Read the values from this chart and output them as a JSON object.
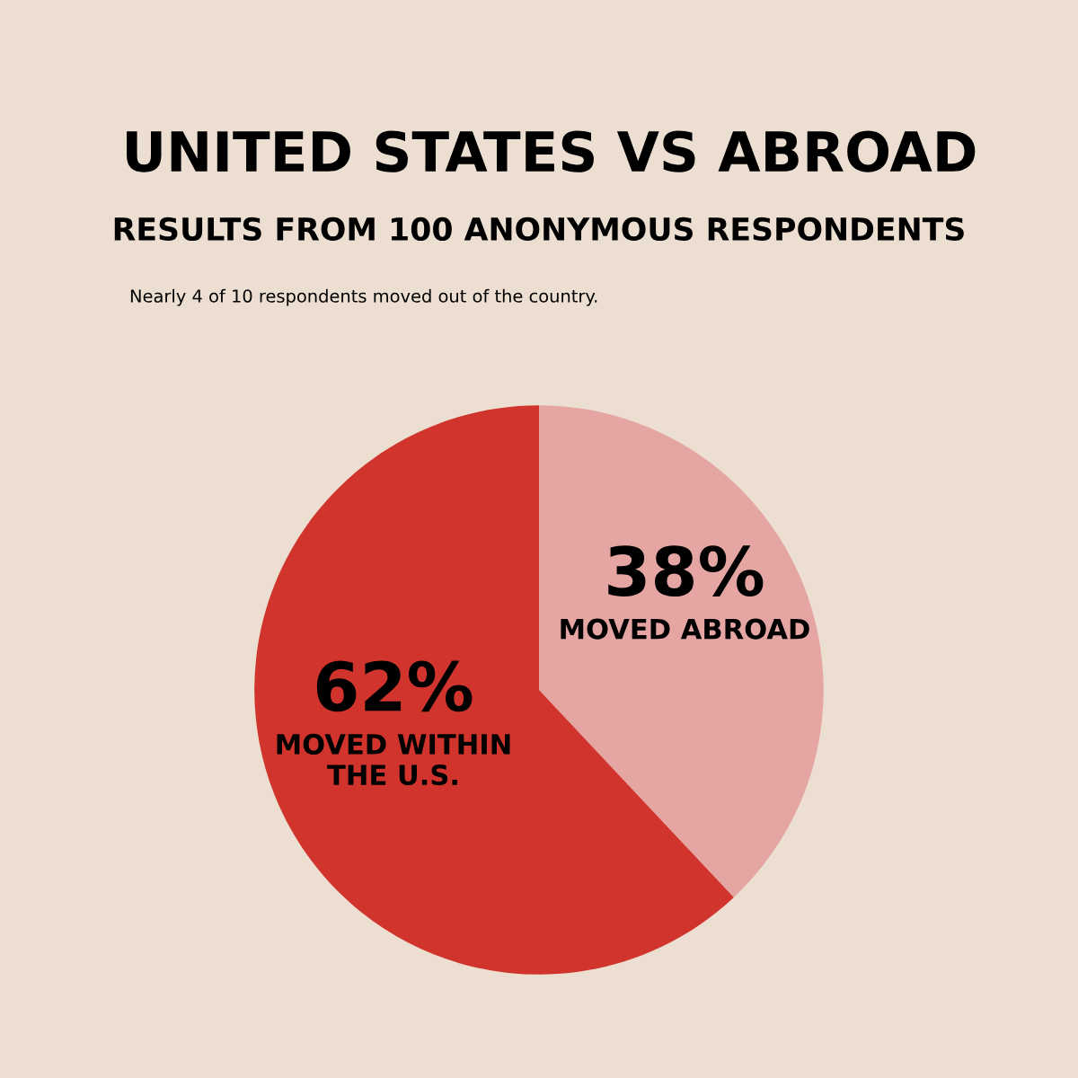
{
  "chart_data": {
    "type": "pie",
    "title": "UNITED STATES VS ABROAD",
    "subtitle": "RESULTS FROM 100 ANONYMOUS RESPONDENTS",
    "annotations": [
      "Nearly 4 of 10 respondents moved out of the country."
    ],
    "categories": [
      "MOVED ABROAD",
      "MOVED WITHIN\nTHE U.S."
    ],
    "values": [
      38,
      62
    ],
    "value_labels": [
      "38%",
      "62%"
    ],
    "colors": [
      "#e5a5a3",
      "#d0342c"
    ],
    "legend": false
  }
}
